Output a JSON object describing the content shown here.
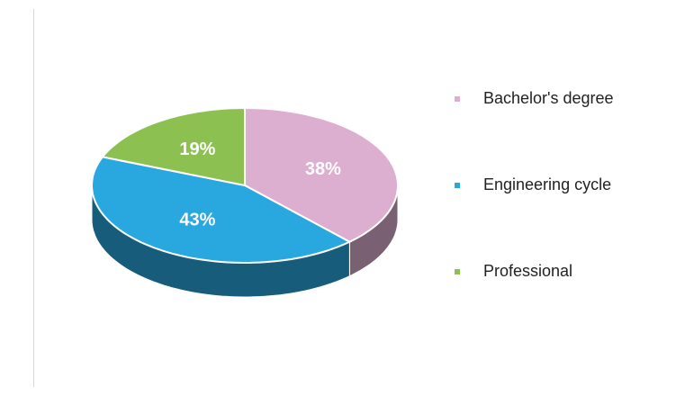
{
  "chart_data": {
    "type": "pie",
    "categories": [
      "Bachelor's degree",
      "Engineering cycle",
      "Professional"
    ],
    "values": [
      38,
      43,
      19
    ],
    "value_labels": [
      "38%",
      "43%",
      "19%"
    ],
    "colors": [
      "#dcaed0",
      "#29a8e0",
      "#8cc152"
    ],
    "legend": "right"
  }
}
